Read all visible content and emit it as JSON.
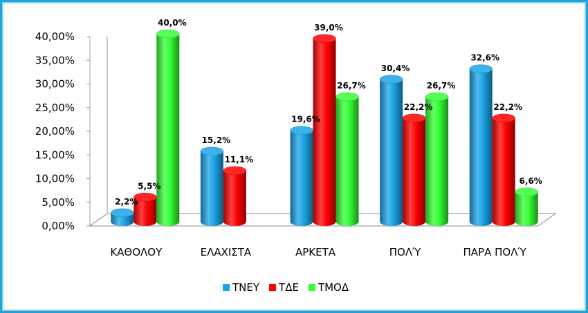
{
  "chart_data": {
    "type": "bar",
    "categories": [
      "ΚΑΘΟΛΟΥ",
      "ΕΛΑΧΙΣΤΑ",
      "ΑΡΚΕΤΑ",
      "ΠΟΛΎ",
      "ΠΑΡΑ ΠΟΛΎ"
    ],
    "series": [
      {
        "name": "ΤΝΕΥ",
        "color": "#1aa3e6",
        "values": [
          2.2,
          15.2,
          19.6,
          30.4,
          32.6
        ],
        "labels": [
          "2,2%",
          "15,2%",
          "19,6%",
          "30,4%",
          "32,6%"
        ]
      },
      {
        "name": "ΤΔΕ",
        "color": "#ff0000",
        "values": [
          5.5,
          11.1,
          39.0,
          22.2,
          22.2
        ],
        "labels": [
          "5,5%",
          "11,1%",
          "39,0%",
          "22,2%",
          "22,2%"
        ]
      },
      {
        "name": "ΤΜΟΔ",
        "color": "#33ff33",
        "values": [
          40.0,
          null,
          26.7,
          26.7,
          6.6
        ],
        "labels": [
          "40,0%",
          "",
          "26,7%",
          "26,7%",
          "6,6%"
        ]
      }
    ],
    "ylim": [
      0,
      40
    ],
    "yticks": [
      "0,00%",
      "5,00%",
      "10,00%",
      "15,00%",
      "20,00%",
      "25,00%",
      "30,00%",
      "35,00%",
      "40,00%"
    ],
    "legend_position": "bottom",
    "style": "3d-cylinder"
  }
}
